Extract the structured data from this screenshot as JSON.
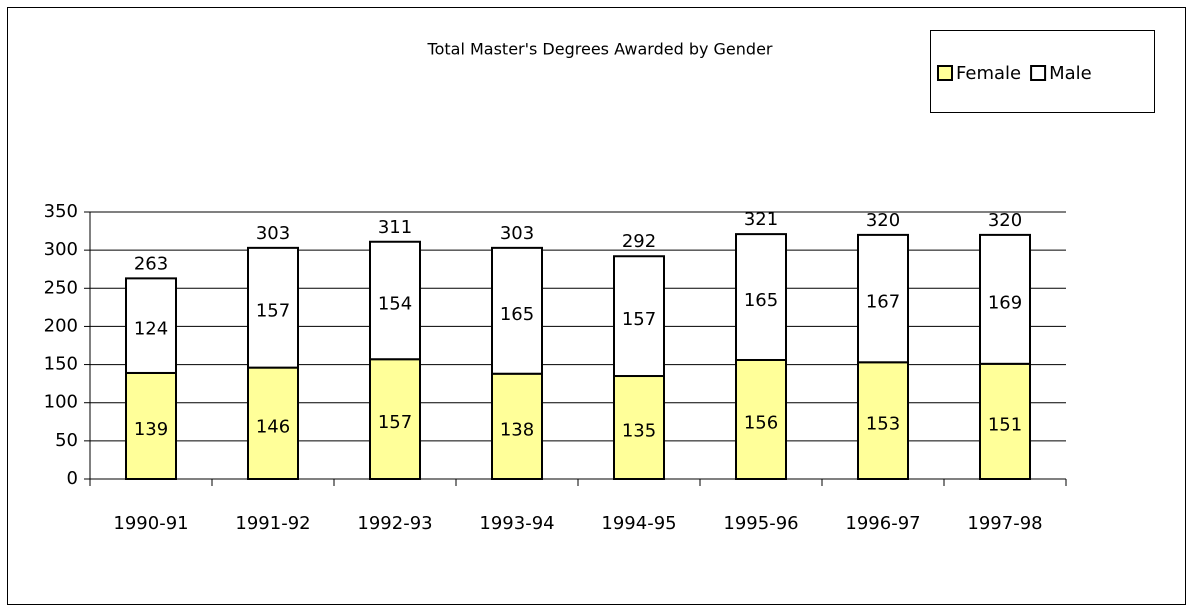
{
  "chart_data": {
    "type": "stacked_bar",
    "title": "Total Master's Degrees Awarded by Gender",
    "categories": [
      "1990-91",
      "1991-92",
      "1992-93",
      "1993-94",
      "1994-95",
      "1995-96",
      "1996-97",
      "1997-98"
    ],
    "series": [
      {
        "name": "Female",
        "color": "#ffff99",
        "values": [
          139,
          146,
          157,
          138,
          135,
          156,
          153,
          151
        ]
      },
      {
        "name": "Male",
        "color": "#ffffff",
        "values": [
          124,
          157,
          154,
          165,
          157,
          165,
          167,
          169
        ]
      }
    ],
    "totals": [
      263,
      303,
      311,
      303,
      292,
      321,
      320,
      320
    ],
    "ylim": [
      0,
      350
    ],
    "yticks": [
      0,
      50,
      100,
      150,
      200,
      250,
      300,
      350
    ],
    "grid": true,
    "legend": "top-right"
  }
}
